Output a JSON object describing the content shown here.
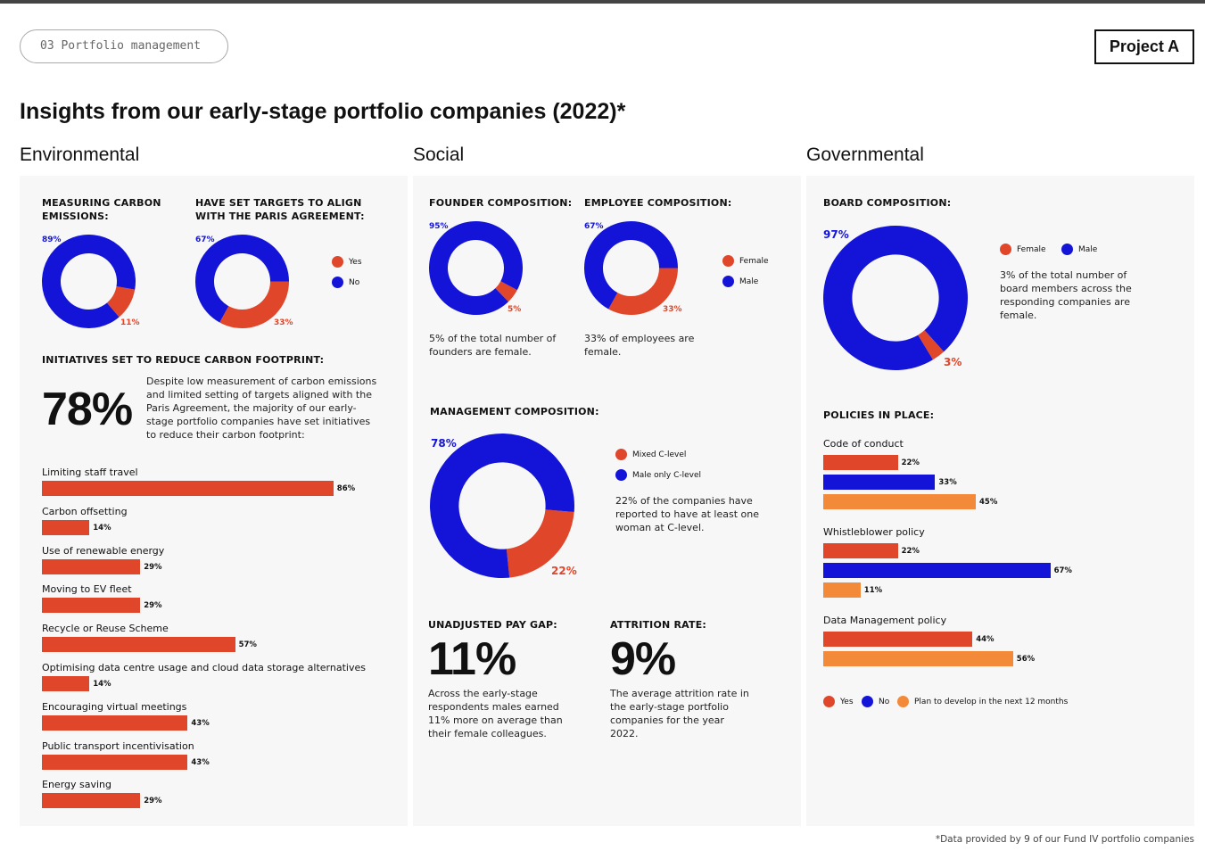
{
  "header": {
    "breadcrumb": "03 Portfolio management",
    "project": "Project A"
  },
  "title": "Insights from our early-stage portfolio companies (2022)*",
  "sections": {
    "environmental": "Environmental",
    "social": "Social",
    "governmental": "Governmental"
  },
  "colors": {
    "red": "#e0462a",
    "blue": "#1414d9",
    "orange": "#f28a3a"
  },
  "environmental": {
    "carbon": {
      "title": "MEASURING CARBON EMISSIONS:",
      "blue_label": "89%",
      "red_label": "11%"
    },
    "paris": {
      "title": "HAVE SET TARGETS TO ALIGN WITH THE PARIS AGREEMENT:",
      "blue_label": "67%",
      "red_label": "33%"
    },
    "legend": {
      "yes": "Yes",
      "no": "No"
    },
    "initiatives_title": "INITIATIVES SET TO REDUCE CARBON FOOTPRINT:",
    "big_stat": "78%",
    "big_stat_text": "Despite low measurement of carbon emissions and limited setting of targets aligned with the Paris Agreement, the majority of our early-stage portfolio companies have set initiatives to reduce their carbon footprint:"
  },
  "social": {
    "founder": {
      "title": "FOUNDER COMPOSITION:",
      "blue_label": "95%",
      "red_label": "5%",
      "text": "5% of the total number of founders are female."
    },
    "employee": {
      "title": "EMPLOYEE COMPOSITION:",
      "blue_label": "67%",
      "red_label": "33%",
      "text": "33% of employees are female."
    },
    "legend": {
      "female": "Female",
      "male": "Male"
    },
    "management": {
      "title": "MANAGEMENT COMPOSITION:",
      "blue_label": "78%",
      "red_label": "22%",
      "legend_mixed": "Mixed C-level",
      "legend_male": "Male only C-level",
      "text": "22% of the companies have reported to have at least one woman at C-level."
    },
    "paygap": {
      "title": "UNADJUSTED PAY GAP:",
      "value": "11%",
      "text": "Across the early-stage respondents males earned 11% more on average than their female colleagues."
    },
    "attrition": {
      "title": "ATTRITION RATE:",
      "value": "9%",
      "text": "The average attrition rate in the early-stage portfolio companies for the year 2022."
    }
  },
  "governmental": {
    "board": {
      "title": "BOARD COMPOSITION:",
      "blue_label": "97%",
      "red_label": "3%",
      "legend_female": "Female",
      "legend_male": "Male",
      "text": "3% of the total number of board members across the responding companies are female."
    },
    "policies_title": "POLICIES IN PLACE:",
    "legend": {
      "yes": "Yes",
      "no": "No",
      "plan": "Plan to develop in the next 12 months"
    }
  },
  "chart_data": [
    {
      "type": "pie",
      "title": "MEASURING CARBON EMISSIONS:",
      "labels": [
        "Yes",
        "No"
      ],
      "values": [
        11,
        89
      ]
    },
    {
      "type": "pie",
      "title": "HAVE SET TARGETS TO ALIGN WITH THE PARIS AGREEMENT:",
      "labels": [
        "Yes",
        "No"
      ],
      "values": [
        33,
        67
      ]
    },
    {
      "type": "bar",
      "title": "INITIATIVES SET TO REDUCE CARBON FOOTPRINT:",
      "categories": [
        "Limiting staff travel",
        "Carbon offsetting",
        "Use of renewable energy",
        "Moving to EV fleet",
        "Recycle or Reuse Scheme",
        "Optimising data centre usage and cloud data storage alternatives",
        "Encouraging virtual meetings",
        "Public transport incentivisation",
        "Energy saving"
      ],
      "values": [
        86,
        14,
        29,
        29,
        57,
        14,
        43,
        43,
        29
      ],
      "value_labels": [
        "86%",
        "14%",
        "29%",
        "29%",
        "57%",
        "14%",
        "43%",
        "43%",
        "29%"
      ]
    },
    {
      "type": "pie",
      "title": "FOUNDER COMPOSITION:",
      "labels": [
        "Female",
        "Male"
      ],
      "values": [
        5,
        95
      ]
    },
    {
      "type": "pie",
      "title": "EMPLOYEE COMPOSITION:",
      "labels": [
        "Female",
        "Male"
      ],
      "values": [
        33,
        67
      ]
    },
    {
      "type": "pie",
      "title": "MANAGEMENT COMPOSITION:",
      "labels": [
        "Mixed C-level",
        "Male only C-level"
      ],
      "values": [
        22,
        78
      ]
    },
    {
      "type": "pie",
      "title": "BOARD COMPOSITION:",
      "labels": [
        "Female",
        "Male"
      ],
      "values": [
        3,
        97
      ]
    },
    {
      "type": "bar",
      "title": "POLICIES IN PLACE:",
      "groups": [
        {
          "name": "Code of conduct",
          "bars": [
            {
              "series": "Yes",
              "value": 22,
              "label": "22%"
            },
            {
              "series": "No",
              "value": 33,
              "label": "33%"
            },
            {
              "series": "Plan to develop in the next 12 months",
              "value": 45,
              "label": "45%"
            }
          ]
        },
        {
          "name": "Whistleblower policy",
          "bars": [
            {
              "series": "Yes",
              "value": 22,
              "label": "22%"
            },
            {
              "series": "No",
              "value": 67,
              "label": "67%"
            },
            {
              "series": "Plan to develop in the next 12 months",
              "value": 11,
              "label": "11%"
            }
          ]
        },
        {
          "name": "Data Management policy",
          "bars": [
            {
              "series": "Yes",
              "value": 44,
              "label": "44%"
            },
            {
              "series": "Plan to develop in the next 12 months",
              "value": 56,
              "label": "56%"
            }
          ]
        }
      ]
    }
  ],
  "footnote": "*Data provided by 9 of our Fund IV portfolio companies"
}
